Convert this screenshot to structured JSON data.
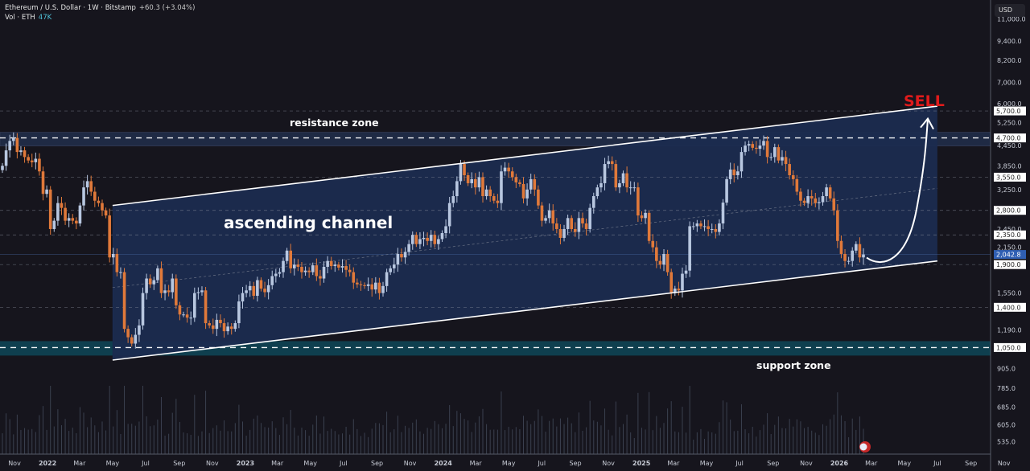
{
  "header": {
    "symbol_line": "Ethereum / U.S. Dollar · 1W · Bitstamp",
    "change": "+60.3 (+3.04%)",
    "volume_label": "Vol · ETH",
    "volume_value": "47K"
  },
  "currency_button": "USD",
  "colors": {
    "background": "#16151d",
    "up_candle": "#b8c7e0",
    "down_candle": "#e0793a",
    "channel_fill": "#1b2b4f",
    "resistance_band": "#1f2a44",
    "support_band": "#0f3f4f",
    "sell_text": "#e01b1b",
    "last_price_badge": "#2f5fb3"
  },
  "chart_data": {
    "type": "candlestick",
    "interval": "1W",
    "y_scale": "log",
    "ylim": [
      500,
      11000
    ],
    "start_week": "2021-10-18",
    "closes": [
      3850,
      4300,
      4600,
      4700,
      4250,
      4300,
      4100,
      4000,
      3950,
      4050,
      3700,
      3150,
      3250,
      2450,
      2600,
      2950,
      2850,
      2600,
      2650,
      2600,
      2550,
      2900,
      3300,
      3450,
      3200,
      3000,
      2950,
      2800,
      2700,
      2000,
      2050,
      1800,
      1800,
      1200,
      1130,
      1080,
      1150,
      1230,
      1550,
      1720,
      1650,
      1700,
      1850,
      1550,
      1580,
      1560,
      1720,
      1420,
      1330,
      1330,
      1300,
      1300,
      1550,
      1560,
      1580,
      1250,
      1230,
      1200,
      1280,
      1250,
      1180,
      1220,
      1200,
      1250,
      1460,
      1550,
      1580,
      1630,
      1520,
      1700,
      1600,
      1560,
      1640,
      1750,
      1780,
      1800,
      1950,
      2100,
      1850,
      1900,
      1870,
      1800,
      1820,
      1800,
      1890,
      1750,
      1720,
      1870,
      1950,
      1880,
      1900,
      1860,
      1880,
      1830,
      1800,
      1670,
      1650,
      1640,
      1630,
      1650,
      1590,
      1670,
      1550,
      1630,
      1800,
      1850,
      1900,
      2050,
      2000,
      2080,
      2200,
      2350,
      2200,
      2280,
      2300,
      2250,
      2350,
      2200,
      2280,
      2380,
      2500,
      2950,
      3100,
      3450,
      3900,
      3600,
      3400,
      3500,
      3300,
      3550,
      3100,
      3250,
      3100,
      3000,
      2950,
      3700,
      3800,
      3700,
      3550,
      3420,
      3380,
      3050,
      3250,
      3500,
      3250,
      2900,
      2600,
      2650,
      2800,
      2550,
      2450,
      2300,
      2450,
      2650,
      2450,
      2400,
      2650,
      2550,
      2450,
      2850,
      3100,
      3300,
      3400,
      3900,
      3980,
      3900,
      3300,
      3400,
      3650,
      3300,
      3300,
      3300,
      2700,
      2650,
      2750,
      2250,
      2150,
      1950,
      1900,
      2050,
      1800,
      1550,
      1600,
      1580,
      1780,
      1820,
      2500,
      2500,
      2550,
      2500,
      2500,
      2450,
      2450,
      2400,
      2550,
      2960,
      3500,
      3750,
      3600,
      3700,
      4250,
      4450,
      4500,
      4380,
      4350,
      4450,
      4600,
      4100,
      4100,
      4400,
      4000,
      4100,
      3900,
      3600,
      3500,
      3200,
      3000,
      2950,
      3100,
      3050,
      2950,
      2970,
      3100,
      3300,
      3050,
      2800,
      2250,
      2050,
      1950,
      1950,
      2100,
      2200,
      2000,
      2042.8
    ],
    "last_price": "2,042.8",
    "price_ticks": [
      "11,000.0",
      "9,400.0",
      "8,200.0",
      "7,000.0",
      "6,000.0",
      "5,250.0",
      "4,450.0",
      "3,850.0",
      "3,250.0",
      "2,450.0",
      "2,150.0",
      "1,550.0",
      "1,190.0",
      "905.0",
      "785.0",
      "685.0",
      "605.0",
      "535.0"
    ],
    "price_tick_values": [
      11000,
      9400,
      8200,
      7000,
      6000,
      5250,
      4450,
      3850,
      3250,
      2450,
      2150,
      1550,
      1190,
      905,
      785,
      685,
      605,
      535
    ],
    "level_labels": [
      "5,700.0",
      "4,700.0",
      "3,550.0",
      "2,800.0",
      "2,350.0",
      "1,900.0",
      "1,400.0",
      "1,050.0"
    ],
    "level_values": [
      5700,
      4700,
      3550,
      2800,
      2350,
      1900,
      1400,
      1050
    ],
    "time_ticks": [
      "Nov",
      "2022",
      "Mar",
      "May",
      "Jul",
      "Sep",
      "Nov",
      "2023",
      "Mar",
      "May",
      "Jul",
      "Sep",
      "Nov",
      "2024",
      "Mar",
      "May",
      "Jul",
      "Sep",
      "Nov",
      "2025",
      "Mar",
      "May",
      "Jul",
      "Sep",
      "Nov",
      "2026",
      "Mar",
      "May",
      "Jul",
      "Sep",
      "Nov"
    ],
    "time_tick_dates": [
      "2021-11",
      "2022-01",
      "2022-03",
      "2022-05",
      "2022-07",
      "2022-09",
      "2022-11",
      "2023-01",
      "2023-03",
      "2023-05",
      "2023-07",
      "2023-09",
      "2023-11",
      "2024-01",
      "2024-03",
      "2024-05",
      "2024-07",
      "2024-09",
      "2024-11",
      "2025-01",
      "2025-03",
      "2025-05",
      "2025-07",
      "2025-09",
      "2025-11",
      "2026-01",
      "2026-03",
      "2026-05",
      "2026-07",
      "2026-09",
      "2026-11"
    ],
    "resistance_zone": {
      "label": "resistance zone",
      "level": 4700
    },
    "support_zone": {
      "label": "support zone",
      "level": 1050
    },
    "channel": {
      "label": "ascending channel",
      "upper": [
        [
          "2022-05",
          2900
        ],
        [
          "2026-07",
          5900
        ]
      ],
      "lower": [
        [
          "2022-05",
          960
        ],
        [
          "2026-07",
          1950
        ]
      ]
    },
    "projection_label": "SELL"
  }
}
